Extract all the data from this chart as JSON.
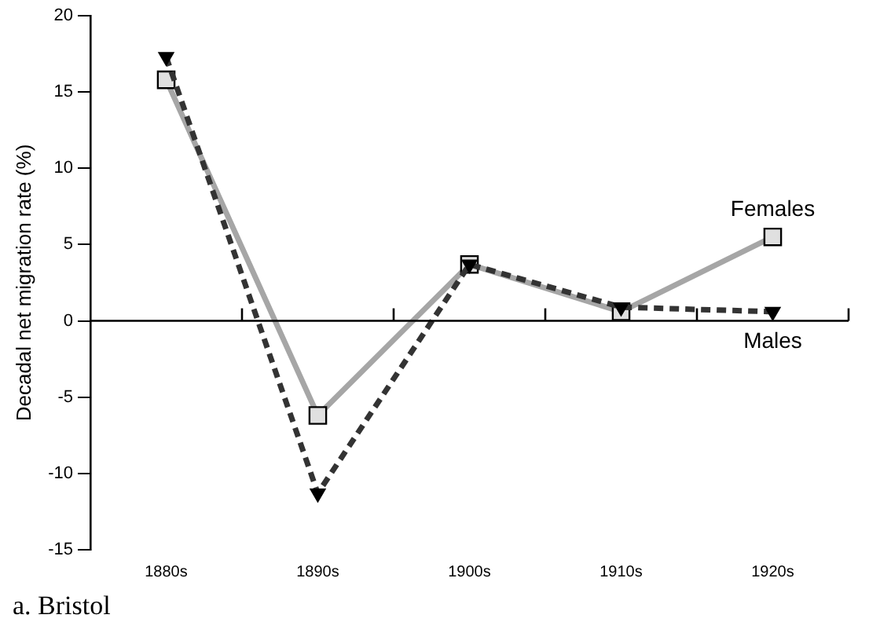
{
  "chart_data": {
    "type": "line",
    "ylabel": "Decadal net migration rate (%)",
    "categories": [
      "1880s",
      "1890s",
      "1900s",
      "1910s",
      "1920s"
    ],
    "series": [
      {
        "name": "Females",
        "color": "#a6a6a6",
        "values": [
          15.8,
          -6.2,
          3.7,
          0.6,
          5.5
        ],
        "marker": "square",
        "line_style": "solid"
      },
      {
        "name": "Males",
        "color": "#333333",
        "values": [
          17.3,
          -11.3,
          3.7,
          0.9,
          0.6
        ],
        "marker": "triangle",
        "line_style": "dashed"
      }
    ],
    "ref_lines": [
      {
        "axis": "y",
        "value": 0,
        "color": "#000000",
        "line_style": "solid"
      }
    ],
    "ylim": [
      -15,
      20
    ],
    "yticks": [
      -15,
      -10,
      -5,
      0,
      5,
      10,
      15,
      20
    ],
    "grid": false,
    "legend": false,
    "annotations": [
      "a. Bristol"
    ]
  }
}
